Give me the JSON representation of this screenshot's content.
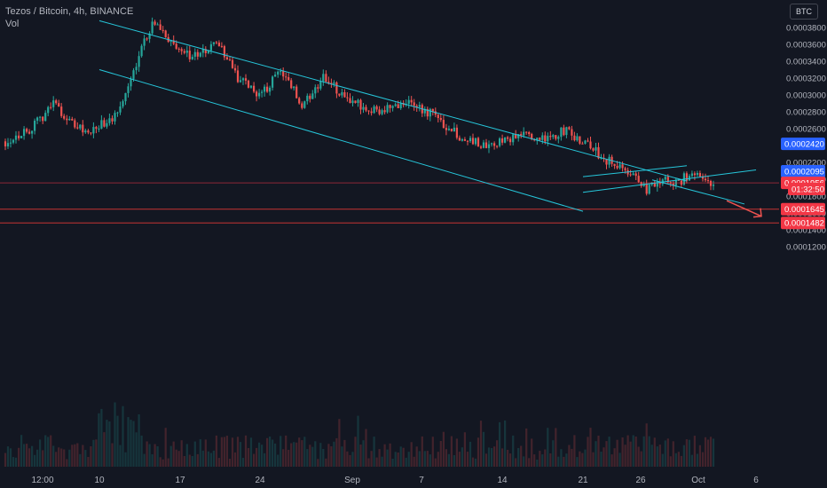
{
  "legend": {
    "title": "Tezos / Bitcoin, 4h, BINANCE",
    "volume_label": "Vol"
  },
  "currency_button": "BTC",
  "colors": {
    "background": "#131722",
    "up": "#26a69a",
    "down": "#ef5350",
    "channel": "#26c6da",
    "arrow": "#ef5350",
    "blue_tag": "#2962ff",
    "red_tag": "#f23645"
  },
  "chart_data": {
    "type": "candlestick",
    "symbol": "Tezos / Bitcoin",
    "interval": "4h",
    "exchange": "BINANCE",
    "currency": "BTC",
    "ylim": [
      0.000119,
      0.000392
    ],
    "y_ticks": [
      "0.0003800",
      "0.0003600",
      "0.0003400",
      "0.0003200",
      "0.0003000",
      "0.0002800",
      "0.0002600",
      "0.0002200",
      "0.0002000",
      "0.0001800",
      "0.0001600",
      "0.0001400",
      "0.0001200"
    ],
    "x_ticks": [
      "12:00",
      "10",
      "17",
      "24",
      "Sep",
      "7",
      "14",
      "21",
      "26",
      "Oct",
      "6"
    ],
    "price_path": [
      {
        "t": 0,
        "p": 0.000245
      },
      {
        "t": 0.04,
        "p": 0.000262
      },
      {
        "t": 0.07,
        "p": 0.000292
      },
      {
        "t": 0.09,
        "p": 0.000268
      },
      {
        "t": 0.12,
        "p": 0.000255
      },
      {
        "t": 0.16,
        "p": 0.000278
      },
      {
        "t": 0.19,
        "p": 0.00035
      },
      {
        "t": 0.21,
        "p": 0.000388
      },
      {
        "t": 0.24,
        "p": 0.000355
      },
      {
        "t": 0.27,
        "p": 0.000345
      },
      {
        "t": 0.3,
        "p": 0.000362
      },
      {
        "t": 0.33,
        "p": 0.000318
      },
      {
        "t": 0.36,
        "p": 0.0003
      },
      {
        "t": 0.39,
        "p": 0.00033
      },
      {
        "t": 0.42,
        "p": 0.000288
      },
      {
        "t": 0.45,
        "p": 0.00032
      },
      {
        "t": 0.49,
        "p": 0.00029
      },
      {
        "t": 0.53,
        "p": 0.000282
      },
      {
        "t": 0.57,
        "p": 0.000294
      },
      {
        "t": 0.61,
        "p": 0.000272
      },
      {
        "t": 0.64,
        "p": 0.000252
      },
      {
        "t": 0.68,
        "p": 0.00024
      },
      {
        "t": 0.72,
        "p": 0.000252
      },
      {
        "t": 0.76,
        "p": 0.000247
      },
      {
        "t": 0.79,
        "p": 0.000258
      },
      {
        "t": 0.82,
        "p": 0.000241
      },
      {
        "t": 0.85,
        "p": 0.000222
      },
      {
        "t": 0.88,
        "p": 0.000208
      },
      {
        "t": 0.905,
        "p": 0.000187
      },
      {
        "t": 0.93,
        "p": 0.000203
      },
      {
        "t": 0.95,
        "p": 0.000195
      },
      {
        "t": 0.97,
        "p": 0.00021
      },
      {
        "t": 0.985,
        "p": 0.0002
      },
      {
        "t": 1,
        "p": 0.0001956
      }
    ],
    "channels": [
      {
        "name": "descending-channel-upper",
        "from": {
          "x": "Aug 10",
          "y": 0.000388
        },
        "to": {
          "x": "Sep 30",
          "y": 0.0001978
        }
      },
      {
        "name": "descending-channel-lower",
        "from": {
          "x": "Aug 10",
          "y": 0.00033
        },
        "to": {
          "x": "Sep 21",
          "y": 0.000162
        }
      },
      {
        "name": "descending-channel-lower-extension",
        "from": {
          "x": "Sep 27",
          "y": 0.0001992
        },
        "to": {
          "x": "Oct 5",
          "y": 0.0001706
        }
      },
      {
        "name": "rising-wedge-upper",
        "from": {
          "x": "Sep 21",
          "y": 0.000203
        },
        "to": {
          "x": "Sep 30",
          "y": 0.000216
        }
      },
      {
        "name": "rising-wedge-lower",
        "from": {
          "x": "Sep 21",
          "y": 0.0001845
        },
        "to": {
          "x": "Oct 6",
          "y": 0.000211
        }
      }
    ],
    "projection_arrow": {
      "from": {
        "x": "Oct 2",
        "y": 0.000184
      },
      "to": {
        "x": "Oct 5",
        "y": 0.000173
      }
    },
    "horizontal_lines": [
      {
        "name": "last-price-line",
        "y": 0.0001956
      },
      {
        "name": "support-line-1",
        "y": 0.0001645
      },
      {
        "name": "support-line-2",
        "y": 0.0001482
      }
    ],
    "price_tags": [
      {
        "name": "tag-0.0002420",
        "label": "0.0002420",
        "y": 0.000242,
        "color": "#2962ff"
      },
      {
        "name": "tag-0.0002095",
        "label": "0.0002095",
        "y": 0.0002095,
        "color": "#2962ff"
      },
      {
        "name": "tag-last-price",
        "label": "0.0001956",
        "y": 0.0001956,
        "color": "#f23645"
      },
      {
        "name": "tag-countdown",
        "label": "01:32:50",
        "y": 0.0001884,
        "color": "#f23645"
      },
      {
        "name": "tag-0.0001645",
        "label": "0.0001645",
        "y": 0.0001645,
        "color": "#f23645"
      },
      {
        "name": "tag-0.0001482",
        "label": "0.0001482",
        "y": 0.0001482,
        "color": "#f23645"
      }
    ]
  }
}
